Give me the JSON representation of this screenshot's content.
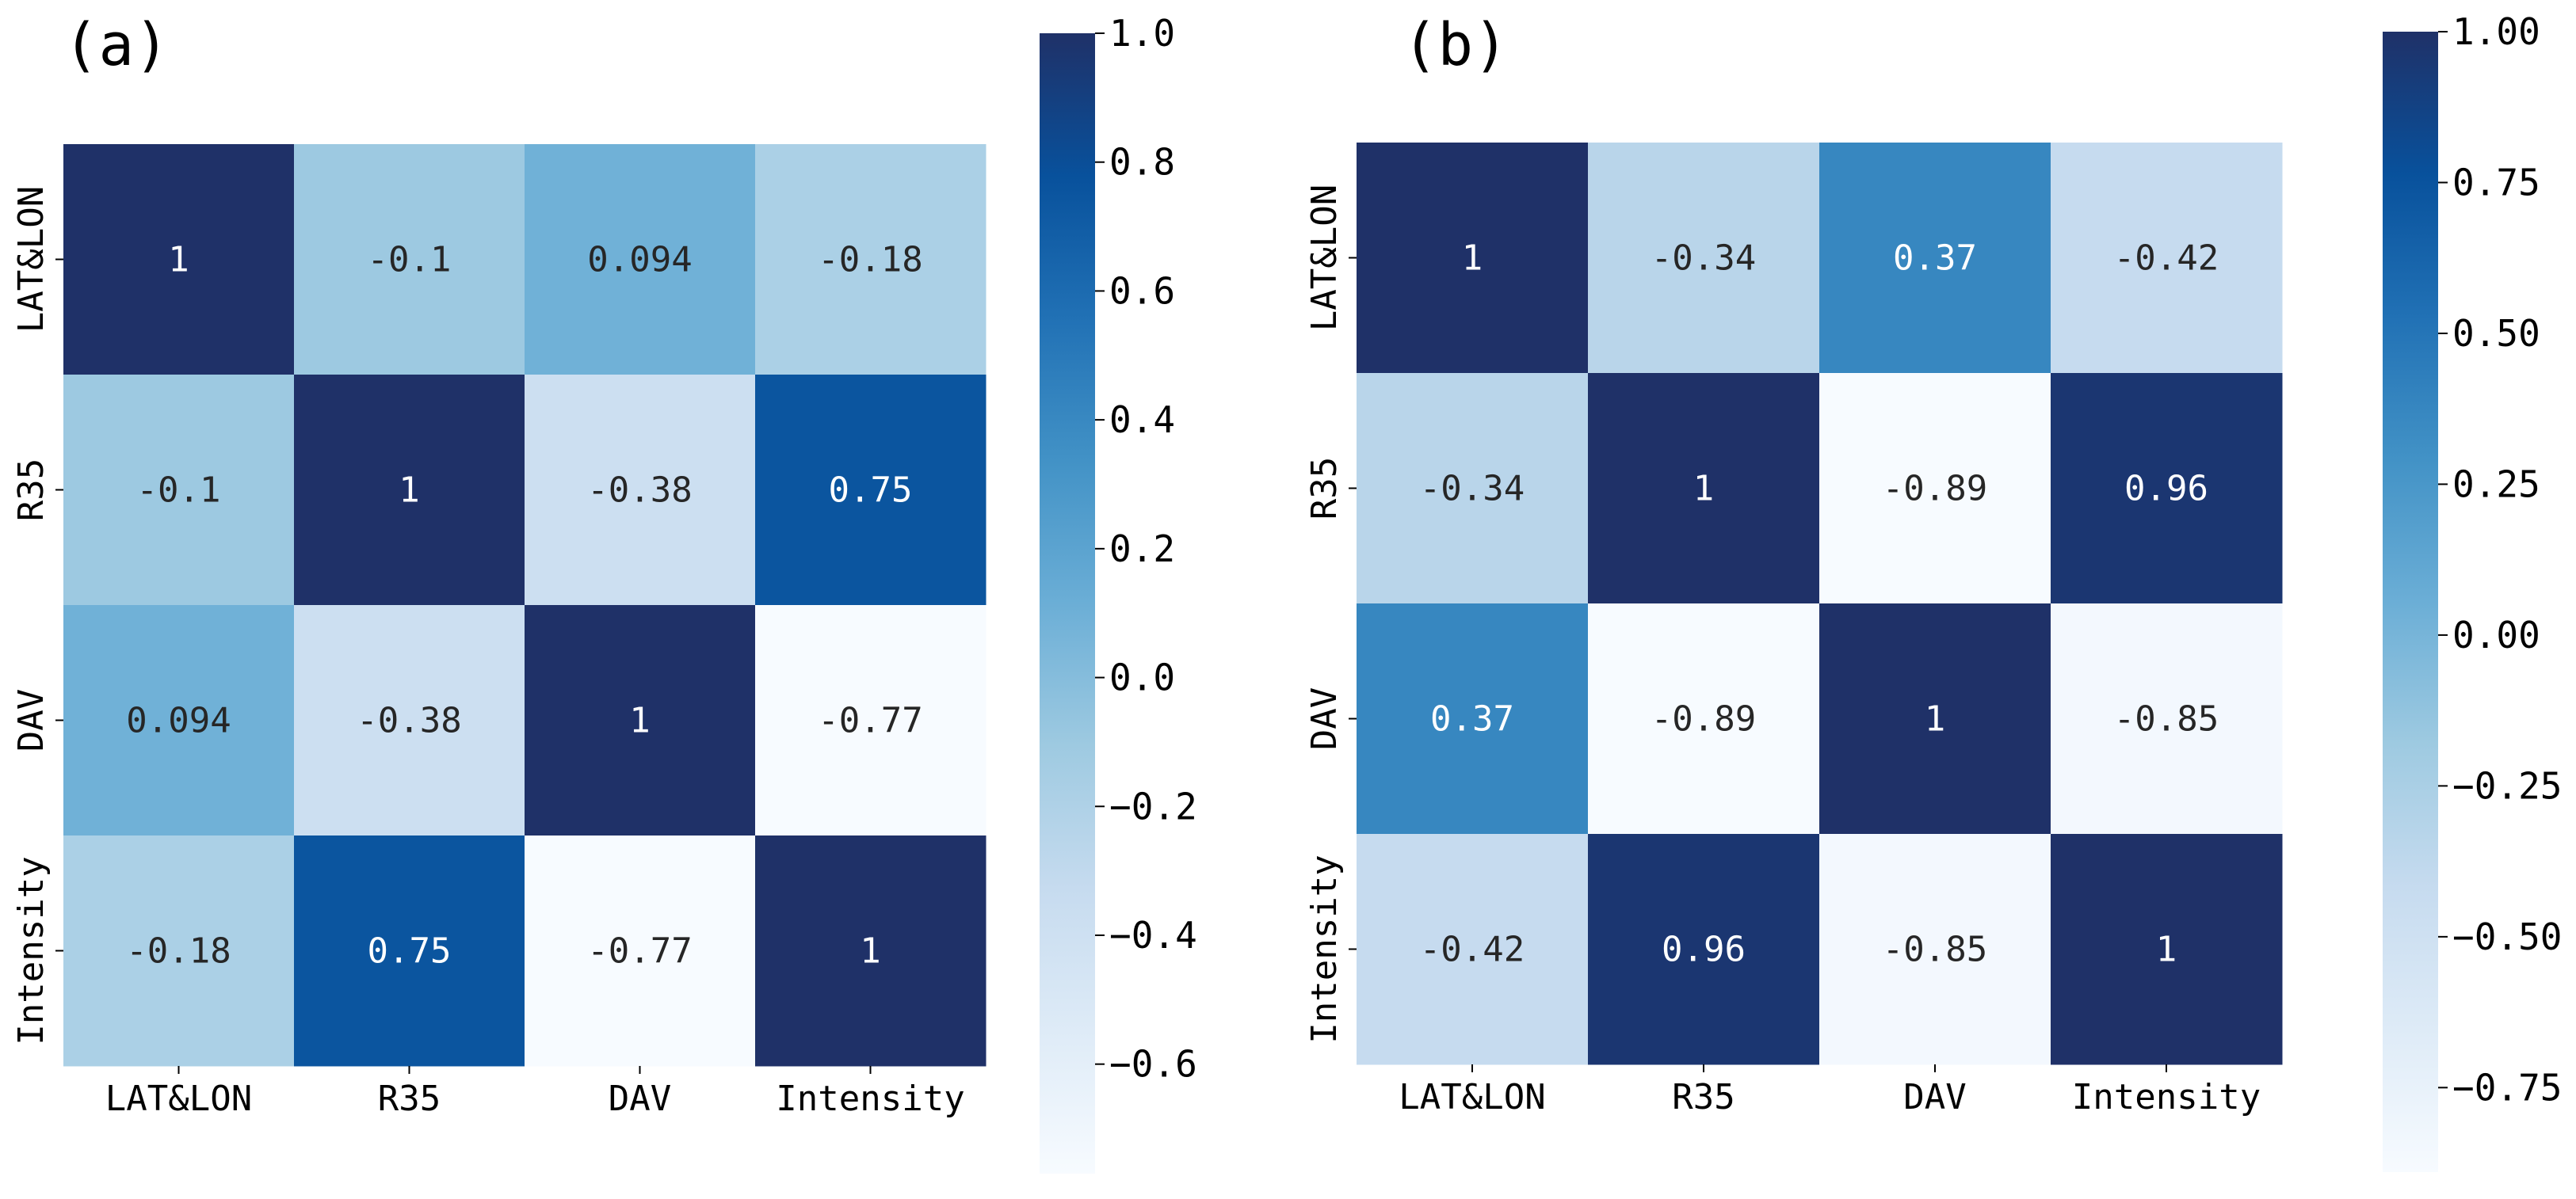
{
  "chart_data": [
    {
      "type": "heatmap",
      "panel_label": "(a)",
      "row_labels": [
        "LAT&LON",
        "R35",
        "DAV",
        "Intensity"
      ],
      "col_labels": [
        "LAT&LON",
        "R35",
        "DAV",
        "Intensity"
      ],
      "values": [
        [
          1,
          -0.1,
          0.094,
          -0.18
        ],
        [
          -0.1,
          1,
          -0.38,
          0.75
        ],
        [
          0.094,
          -0.38,
          1,
          -0.77
        ],
        [
          -0.18,
          0.75,
          -0.77,
          1
        ]
      ],
      "annotations": [
        [
          "1",
          "-0.1",
          "0.094",
          "-0.18"
        ],
        [
          "-0.1",
          "1",
          "-0.38",
          "0.75"
        ],
        [
          "0.094",
          "-0.38",
          "1",
          "-0.77"
        ],
        [
          "-0.18",
          "0.75",
          "-0.77",
          "1"
        ]
      ],
      "colormap": "Blues",
      "vmin": -0.77,
      "vmax": 1.0,
      "colorbar_ticks": [
        1.0,
        0.8,
        0.6,
        0.4,
        0.2,
        0.0,
        -0.2,
        -0.4,
        -0.6
      ],
      "colorbar_tick_labels": [
        "1.0",
        "0.8",
        "0.6",
        "0.4",
        "0.2",
        "0.0",
        "−0.2",
        "−0.4",
        "−0.6"
      ]
    },
    {
      "type": "heatmap",
      "panel_label": "(b)",
      "row_labels": [
        "LAT&LON",
        "R35",
        "DAV",
        "Intensity"
      ],
      "col_labels": [
        "LAT&LON",
        "R35",
        "DAV",
        "Intensity"
      ],
      "values": [
        [
          1,
          -0.34,
          0.37,
          -0.42
        ],
        [
          -0.34,
          1,
          -0.89,
          0.96
        ],
        [
          0.37,
          -0.89,
          1,
          -0.85
        ],
        [
          -0.42,
          0.96,
          -0.85,
          1
        ]
      ],
      "annotations": [
        [
          "1",
          "-0.34",
          "0.37",
          "-0.42"
        ],
        [
          "-0.34",
          "1",
          "-0.89",
          "0.96"
        ],
        [
          "0.37",
          "-0.89",
          "1",
          "-0.85"
        ],
        [
          "-0.42",
          "0.96",
          "-0.85",
          "1"
        ]
      ],
      "colormap": "Blues",
      "vmin": -0.89,
      "vmax": 1.0,
      "colorbar_ticks": [
        1.0,
        0.75,
        0.5,
        0.25,
        0.0,
        -0.25,
        -0.5,
        -0.75
      ],
      "colorbar_tick_labels": [
        "1.00",
        "0.75",
        "0.50",
        "0.25",
        "0.00",
        "−0.25",
        "−0.50",
        "−0.75"
      ]
    }
  ]
}
